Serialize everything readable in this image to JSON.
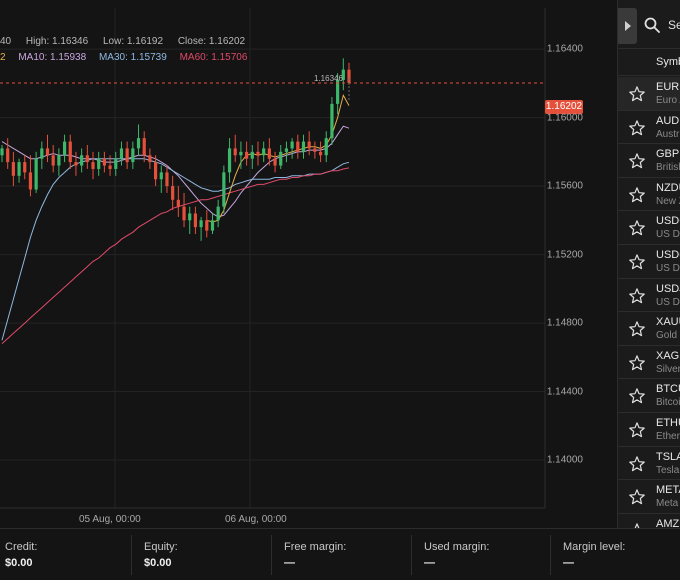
{
  "ohlc": {
    "open": "40",
    "high": "High: 1.16346",
    "low": "Low: 1.16192",
    "close": "Close: 1.16202"
  },
  "moving_averages": {
    "ma5_fragment": "2",
    "ma10": "MA10: 1.15938",
    "ma30": "MA30: 1.15739",
    "ma60": "MA60: 1.15706"
  },
  "colors": {
    "ma5": "#e8b04a",
    "ma10": "#c7a6e0",
    "ma30": "#8fb8e0",
    "ma60": "#e04a6a",
    "bull": "#3db86b",
    "bear": "#e4503a",
    "current_price_line": "#e4503a"
  },
  "chart": {
    "current_price": "1.16202",
    "high_marker": "1.16346",
    "price_axis": [
      "1.16400",
      "1.16000",
      "1.15600",
      "1.15200",
      "1.14800",
      "1.14400",
      "1.14000"
    ],
    "time_axis": [
      "05 Aug, 00:00",
      "06 Aug, 00:00"
    ]
  },
  "chart_data": {
    "type": "candlestick",
    "ylim": [
      1.1372,
      1.1664
    ],
    "candles": [
      {
        "o": 1.1578,
        "h": 1.1584,
        "l": 1.1574,
        "c": 1.1582
      },
      {
        "o": 1.1582,
        "h": 1.1588,
        "l": 1.157,
        "c": 1.1574
      },
      {
        "o": 1.1574,
        "h": 1.158,
        "l": 1.156,
        "c": 1.1566
      },
      {
        "o": 1.1566,
        "h": 1.1576,
        "l": 1.1562,
        "c": 1.1574
      },
      {
        "o": 1.1574,
        "h": 1.1578,
        "l": 1.1564,
        "c": 1.1568
      },
      {
        "o": 1.1568,
        "h": 1.1578,
        "l": 1.1554,
        "c": 1.1558
      },
      {
        "o": 1.1558,
        "h": 1.158,
        "l": 1.1556,
        "c": 1.1576
      },
      {
        "o": 1.1576,
        "h": 1.1586,
        "l": 1.157,
        "c": 1.1582
      },
      {
        "o": 1.1582,
        "h": 1.159,
        "l": 1.1574,
        "c": 1.1578
      },
      {
        "o": 1.1578,
        "h": 1.1584,
        "l": 1.1568,
        "c": 1.1572
      },
      {
        "o": 1.1572,
        "h": 1.1582,
        "l": 1.1566,
        "c": 1.1578
      },
      {
        "o": 1.1578,
        "h": 1.159,
        "l": 1.1574,
        "c": 1.1586
      },
      {
        "o": 1.1586,
        "h": 1.159,
        "l": 1.157,
        "c": 1.1574
      },
      {
        "o": 1.1574,
        "h": 1.158,
        "l": 1.1566,
        "c": 1.1572
      },
      {
        "o": 1.1572,
        "h": 1.1582,
        "l": 1.1568,
        "c": 1.1578
      },
      {
        "o": 1.1578,
        "h": 1.1584,
        "l": 1.157,
        "c": 1.1574
      },
      {
        "o": 1.1574,
        "h": 1.158,
        "l": 1.1564,
        "c": 1.157
      },
      {
        "o": 1.157,
        "h": 1.158,
        "l": 1.1566,
        "c": 1.1576
      },
      {
        "o": 1.1576,
        "h": 1.158,
        "l": 1.1568,
        "c": 1.1572
      },
      {
        "o": 1.1572,
        "h": 1.1578,
        "l": 1.1566,
        "c": 1.157
      },
      {
        "o": 1.157,
        "h": 1.158,
        "l": 1.1566,
        "c": 1.1576
      },
      {
        "o": 1.1576,
        "h": 1.1586,
        "l": 1.1572,
        "c": 1.1582
      },
      {
        "o": 1.1582,
        "h": 1.1586,
        "l": 1.157,
        "c": 1.1574
      },
      {
        "o": 1.1574,
        "h": 1.1586,
        "l": 1.157,
        "c": 1.1582
      },
      {
        "o": 1.1582,
        "h": 1.1596,
        "l": 1.1578,
        "c": 1.1588
      },
      {
        "o": 1.1588,
        "h": 1.1592,
        "l": 1.1574,
        "c": 1.1578
      },
      {
        "o": 1.1578,
        "h": 1.1582,
        "l": 1.157,
        "c": 1.1574
      },
      {
        "o": 1.1574,
        "h": 1.1578,
        "l": 1.156,
        "c": 1.1564
      },
      {
        "o": 1.1564,
        "h": 1.1572,
        "l": 1.1556,
        "c": 1.1568
      },
      {
        "o": 1.1568,
        "h": 1.1572,
        "l": 1.1556,
        "c": 1.156
      },
      {
        "o": 1.156,
        "h": 1.1566,
        "l": 1.1546,
        "c": 1.1552
      },
      {
        "o": 1.1552,
        "h": 1.156,
        "l": 1.1542,
        "c": 1.1548
      },
      {
        "o": 1.1548,
        "h": 1.1556,
        "l": 1.1536,
        "c": 1.154
      },
      {
        "o": 1.154,
        "h": 1.1548,
        "l": 1.1532,
        "c": 1.1544
      },
      {
        "o": 1.1544,
        "h": 1.1548,
        "l": 1.1532,
        "c": 1.1536
      },
      {
        "o": 1.1536,
        "h": 1.1542,
        "l": 1.1528,
        "c": 1.154
      },
      {
        "o": 1.154,
        "h": 1.1546,
        "l": 1.153,
        "c": 1.1534
      },
      {
        "o": 1.1534,
        "h": 1.1544,
        "l": 1.1532,
        "c": 1.154
      },
      {
        "o": 1.154,
        "h": 1.1552,
        "l": 1.1536,
        "c": 1.1548
      },
      {
        "o": 1.1548,
        "h": 1.1572,
        "l": 1.1544,
        "c": 1.1568
      },
      {
        "o": 1.1568,
        "h": 1.1588,
        "l": 1.1562,
        "c": 1.1582
      },
      {
        "o": 1.1582,
        "h": 1.159,
        "l": 1.1574,
        "c": 1.1578
      },
      {
        "o": 1.1578,
        "h": 1.1586,
        "l": 1.157,
        "c": 1.158
      },
      {
        "o": 1.158,
        "h": 1.1586,
        "l": 1.1572,
        "c": 1.1576
      },
      {
        "o": 1.1576,
        "h": 1.1584,
        "l": 1.157,
        "c": 1.158
      },
      {
        "o": 1.158,
        "h": 1.1586,
        "l": 1.1572,
        "c": 1.1578
      },
      {
        "o": 1.1578,
        "h": 1.1586,
        "l": 1.1574,
        "c": 1.1582
      },
      {
        "o": 1.1582,
        "h": 1.1588,
        "l": 1.1572,
        "c": 1.1576
      },
      {
        "o": 1.1576,
        "h": 1.158,
        "l": 1.1568,
        "c": 1.1572
      },
      {
        "o": 1.1572,
        "h": 1.1584,
        "l": 1.157,
        "c": 1.158
      },
      {
        "o": 1.158,
        "h": 1.1586,
        "l": 1.1574,
        "c": 1.1582
      },
      {
        "o": 1.1582,
        "h": 1.1588,
        "l": 1.1576,
        "c": 1.1586
      },
      {
        "o": 1.1586,
        "h": 1.159,
        "l": 1.1576,
        "c": 1.158
      },
      {
        "o": 1.158,
        "h": 1.159,
        "l": 1.1576,
        "c": 1.1586
      },
      {
        "o": 1.1586,
        "h": 1.1592,
        "l": 1.1578,
        "c": 1.1582
      },
      {
        "o": 1.1582,
        "h": 1.1586,
        "l": 1.1576,
        "c": 1.158
      },
      {
        "o": 1.158,
        "h": 1.1586,
        "l": 1.1574,
        "c": 1.1578
      },
      {
        "o": 1.1578,
        "h": 1.1592,
        "l": 1.1574,
        "c": 1.1588
      },
      {
        "o": 1.1588,
        "h": 1.1612,
        "l": 1.1584,
        "c": 1.1608
      },
      {
        "o": 1.1608,
        "h": 1.1626,
        "l": 1.1602,
        "c": 1.1622
      },
      {
        "o": 1.1622,
        "h": 1.16346,
        "l": 1.1616,
        "c": 1.1628
      },
      {
        "o": 1.1628,
        "h": 1.1632,
        "l": 1.16192,
        "c": 1.16202
      }
    ],
    "ma_lines": [
      {
        "name": "MA10",
        "values": [
          1.1586,
          1.1584,
          1.1582,
          1.158,
          1.1578,
          1.1576,
          1.1576,
          1.1577,
          1.1578,
          1.1579,
          1.1578,
          1.1578,
          1.1578,
          1.1577,
          1.1576,
          1.1576,
          1.1576,
          1.1575,
          1.1574,
          1.1574,
          1.1574,
          1.1575,
          1.1576,
          1.1577,
          1.1578,
          1.1578,
          1.1577,
          1.1576,
          1.1574,
          1.1572,
          1.1569,
          1.1566,
          1.1562,
          1.1558,
          1.1554,
          1.155,
          1.1547,
          1.1544,
          1.1542,
          1.1543,
          1.1547,
          1.1551,
          1.1556,
          1.156,
          1.1564,
          1.1568,
          1.1571,
          1.1574,
          1.1576,
          1.1577,
          1.1578,
          1.1579,
          1.158,
          1.158,
          1.1581,
          1.1581,
          1.1581,
          1.1582,
          1.1585,
          1.159,
          1.1595,
          1.15938
        ]
      },
      {
        "name": "MA30",
        "values": [
          1.147,
          1.1482,
          1.1494,
          1.1506,
          1.1518,
          1.153,
          1.154,
          1.1548,
          1.1555,
          1.1561,
          1.1565,
          1.1568,
          1.1571,
          1.1573,
          1.1574,
          1.1575,
          1.1576,
          1.1576,
          1.1576,
          1.1576,
          1.1576,
          1.1576,
          1.1576,
          1.1576,
          1.1576,
          1.1576,
          1.1575,
          1.1574,
          1.1573,
          1.1571,
          1.1569,
          1.1567,
          1.1565,
          1.1563,
          1.1561,
          1.1559,
          1.1558,
          1.1557,
          1.1557,
          1.1558,
          1.1559,
          1.1561,
          1.1562,
          1.1563,
          1.1564,
          1.1564,
          1.1564,
          1.1564,
          1.1565,
          1.1565,
          1.1565,
          1.1566,
          1.1566,
          1.1566,
          1.1567,
          1.1567,
          1.1567,
          1.1568,
          1.1569,
          1.1571,
          1.1573,
          1.15739
        ]
      },
      {
        "name": "MA60",
        "values": [
          1.1468,
          1.1471,
          1.1474,
          1.1477,
          1.148,
          1.1483,
          1.1486,
          1.1489,
          1.1492,
          1.1495,
          1.1498,
          1.1501,
          1.1504,
          1.1507,
          1.151,
          1.1513,
          1.1516,
          1.1518,
          1.1521,
          1.1524,
          1.1526,
          1.1529,
          1.1531,
          1.1533,
          1.1536,
          1.1538,
          1.154,
          1.1542,
          1.1544,
          1.1545,
          1.1547,
          1.1548,
          1.1549,
          1.155,
          1.1551,
          1.1552,
          1.1552,
          1.1553,
          1.1554,
          1.1555,
          1.1556,
          1.1557,
          1.1558,
          1.1559,
          1.156,
          1.1561,
          1.1561,
          1.1562,
          1.1563,
          1.1564,
          1.1564,
          1.1565,
          1.1565,
          1.1566,
          1.1566,
          1.1567,
          1.1567,
          1.1568,
          1.1569,
          1.1569,
          1.157,
          1.15706
        ]
      },
      {
        "name": "MA5",
        "values": [
          null,
          null,
          null,
          null,
          null,
          null,
          null,
          null,
          null,
          null,
          null,
          null,
          null,
          null,
          null,
          null,
          null,
          null,
          null,
          null,
          null,
          null,
          null,
          null,
          null,
          null,
          null,
          null,
          null,
          null,
          null,
          null,
          null,
          null,
          null,
          null,
          1.154,
          1.1539,
          1.154,
          1.1546,
          1.1556,
          1.1566,
          1.1574,
          1.1578,
          1.1579,
          1.1578,
          1.1579,
          1.1578,
          1.1577,
          1.1578,
          1.1579,
          1.158,
          1.1581,
          1.1582,
          1.1583,
          1.1583,
          1.1582,
          1.1584,
          1.159,
          1.16,
          1.1613,
          1.1607
        ]
      }
    ]
  },
  "side_panel": {
    "search_placeholder": "Se",
    "symbols_header": "Symb",
    "symbols": [
      {
        "code": "EURU",
        "name": "Euro A",
        "selected": true
      },
      {
        "code": "AUDU",
        "name": "Austr",
        "selected": false
      },
      {
        "code": "GBPU",
        "name": "British",
        "selected": false
      },
      {
        "code": "NZDU",
        "name": "New Z",
        "selected": false
      },
      {
        "code": "USDC",
        "name": "US Do",
        "selected": false
      },
      {
        "code": "USDC",
        "name": "US Do",
        "selected": false
      },
      {
        "code": "USDJ",
        "name": "US Do",
        "selected": false
      },
      {
        "code": "XAUU",
        "name": "Gold",
        "selected": false
      },
      {
        "code": "XAGU",
        "name": "Silver",
        "selected": false
      },
      {
        "code": "BTCU",
        "name": "Bitcoi",
        "selected": false
      },
      {
        "code": "ETHU",
        "name": "Ether",
        "selected": false
      },
      {
        "code": "TSLA",
        "name": "Tesla",
        "selected": false
      },
      {
        "code": "META",
        "name": "Meta",
        "selected": false
      },
      {
        "code": "AMZN",
        "name": "",
        "selected": false
      }
    ]
  },
  "footer": {
    "credit": {
      "label": "Credit:",
      "value": "$0.00"
    },
    "equity": {
      "label": "Equity:",
      "value": "$0.00"
    },
    "free_margin": {
      "label": "Free margin:",
      "value": "—"
    },
    "used_margin": {
      "label": "Used margin:",
      "value": "—"
    },
    "margin_level": {
      "label": "Margin level:",
      "value": "—"
    }
  }
}
